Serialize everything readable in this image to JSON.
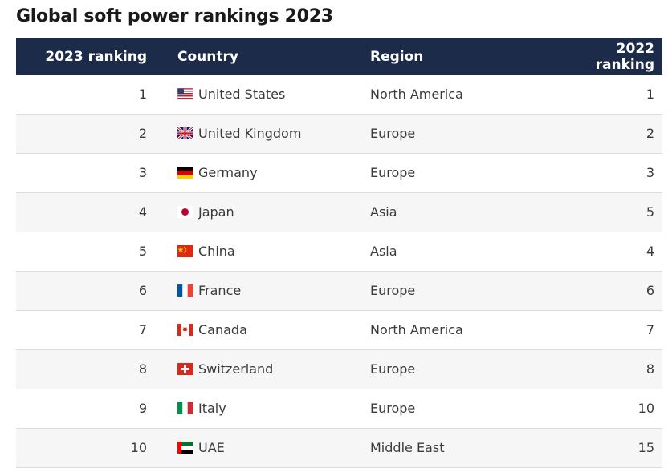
{
  "title": "Global soft power rankings 2023",
  "headers": {
    "rank_2023": "2023 ranking",
    "country": "Country",
    "region": "Region",
    "rank_2022": "2022 ranking"
  },
  "rows": [
    {
      "rank_2023": "1",
      "country": "United States",
      "flag": "us-flag-icon",
      "region": "North America",
      "rank_2022": "1"
    },
    {
      "rank_2023": "2",
      "country": "United Kingdom",
      "flag": "uk-flag-icon",
      "region": "Europe",
      "rank_2022": "2"
    },
    {
      "rank_2023": "3",
      "country": "Germany",
      "flag": "germany-flag-icon",
      "region": "Europe",
      "rank_2022": "3"
    },
    {
      "rank_2023": "4",
      "country": "Japan",
      "flag": "japan-flag-icon",
      "region": "Asia",
      "rank_2022": "5"
    },
    {
      "rank_2023": "5",
      "country": "China",
      "flag": "china-flag-icon",
      "region": "Asia",
      "rank_2022": "4"
    },
    {
      "rank_2023": "6",
      "country": "France",
      "flag": "france-flag-icon",
      "region": "Europe",
      "rank_2022": "6"
    },
    {
      "rank_2023": "7",
      "country": "Canada",
      "flag": "canada-flag-icon",
      "region": "North America",
      "rank_2022": "7"
    },
    {
      "rank_2023": "8",
      "country": "Switzerland",
      "flag": "switzerland-flag-icon",
      "region": "Europe",
      "rank_2022": "8"
    },
    {
      "rank_2023": "9",
      "country": "Italy",
      "flag": "italy-flag-icon",
      "region": "Europe",
      "rank_2022": "10"
    },
    {
      "rank_2023": "10",
      "country": "UAE",
      "flag": "uae-flag-icon",
      "region": "Middle East",
      "rank_2022": "15"
    }
  ]
}
